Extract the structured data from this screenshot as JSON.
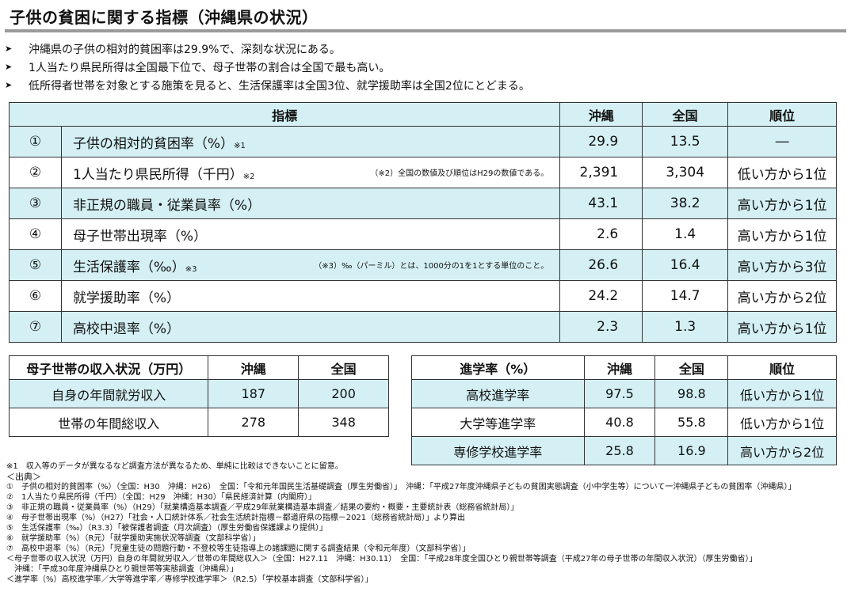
{
  "title": "子供の貧困に関する指標（沖縄県の状況）",
  "bullets": [
    "沖縄県の子供の相対的貧困率は29.9%で、深刻な状況にある。",
    "1人当たり県民所得は全国最下位で、母子世帯の割合は全国で最も高い。",
    "低所得者世帯を対象とする施策を見ると、生活保護率は全国3位、就学援助率は全国2位にとどまる。"
  ],
  "bullet_icon": "triangle-right-icon",
  "main_table": {
    "headers": [
      "指標",
      "沖縄",
      "全国",
      "順位"
    ],
    "rows": [
      {
        "no": "①",
        "label": "子供の相対的貧困率（%）",
        "sup": "※1",
        "note": "",
        "okinawa": "29.9",
        "national": "13.5",
        "rank": "―"
      },
      {
        "no": "②",
        "label": "1人当たり県民所得（千円）",
        "sup": "※2",
        "note": "（※2）全国の数値及び順位はH29の数値である。",
        "okinawa": "2,391",
        "national": "3,304",
        "rank": "低い方から1位"
      },
      {
        "no": "③",
        "label": "非正規の職員・従業員率（%）",
        "sup": "",
        "note": "",
        "okinawa": "43.1",
        "national": "38.2",
        "rank": "高い方から1位"
      },
      {
        "no": "④",
        "label": "母子世帯出現率（%）",
        "sup": "",
        "note": "",
        "okinawa": "2.6",
        "national": "1.4",
        "rank": "高い方から1位"
      },
      {
        "no": "⑤",
        "label": "生活保護率（‰）",
        "sup": "※3",
        "note": "（※3）‰（パーミル）とは、1000分の1を1とする単位のこと。",
        "okinawa": "26.6",
        "national": "16.4",
        "rank": "高い方から3位"
      },
      {
        "no": "⑥",
        "label": "就学援助率（%）",
        "sup": "",
        "note": "",
        "okinawa": "24.2",
        "national": "14.7",
        "rank": "高い方から2位"
      },
      {
        "no": "⑦",
        "label": "高校中退率（%）",
        "sup": "",
        "note": "",
        "okinawa": "2.3",
        "national": "1.3",
        "rank": "高い方から1位"
      }
    ]
  },
  "income_table": {
    "headers": [
      "母子世帯の収入状況（万円）",
      "沖縄",
      "全国"
    ],
    "rows": [
      {
        "label": "自身の年間就労収入",
        "okinawa": "187",
        "national": "200"
      },
      {
        "label": "世帯の年間総収入",
        "okinawa": "278",
        "national": "348"
      }
    ]
  },
  "advance_table": {
    "headers": [
      "進学率（%）",
      "沖縄",
      "全国",
      "順位"
    ],
    "rows": [
      {
        "label": "高校進学率",
        "okinawa": "97.5",
        "national": "98.8",
        "rank": "低い方から1位"
      },
      {
        "label": "大学等進学率",
        "okinawa": "40.8",
        "national": "55.8",
        "rank": "低い方から1位"
      },
      {
        "label": "専修学校進学率",
        "okinawa": "25.8",
        "national": "16.9",
        "rank": "高い方から2位"
      }
    ]
  },
  "footnotes": {
    "note1": "※1　収入等のデータが異なるなど調査方法が異なるため、単純に比較はできないことに留意。",
    "source_header": "＜出典＞",
    "lines": [
      "①　子供の相対的貧困率（%）（全国：H30　沖縄：H26）　全国：「令和元年国民生活基礎調査（厚生労働省）」　沖縄：「平成27年度沖縄県子どもの貧困実態調査（小中学生等）について一沖縄県子どもの貧困率（沖縄県）」",
      "②　1人当たり県民所得（千円）（全国：H29　沖縄：H30）「県民経済計算（内閣府）」",
      "③　非正規の職員・従業員率（%）（H29）「就業構造基本調査／平成29年就業構造基本調査／結果の要約・概要・主要統計表（総務省統計局）」",
      "④　母子世帯出現率（%）（H27）「社会・人口統計体系／社会生活統計指標－都道府県の指標－2021（総務省統計局）」より算出",
      "⑤　生活保護率（‰）（R3.3）「被保護者調査（月次調査）（厚生労働省保護課より提供）」",
      "⑥　就学援助率（%）（R元）「就学援助実施状況等調査（文部科学省）」",
      "⑦　高校中退率（%）（R元）「児童生徒の問題行動・不登校等生徒指導上の諸課題に関する調査結果（令和元年度）（文部科学省）」",
      "＜母子世帯の収入状況（万円）自身の年間就労収入／世帯の年間総収入＞（全国：H27.11　沖縄：H30.11）　全国：「平成28年度全国ひとり親世帯等調査（平成27年の母子世帯の年間収入状況）（厚生労働省）」",
      "　沖縄：「平成30年度沖縄県ひとり親世帯等実態調査（沖縄県）」",
      "＜進学率（%）高校進学率／大学等進学率／専修学校進学率＞（R2.5）「学校基本調査（文部科学省）」"
    ]
  }
}
